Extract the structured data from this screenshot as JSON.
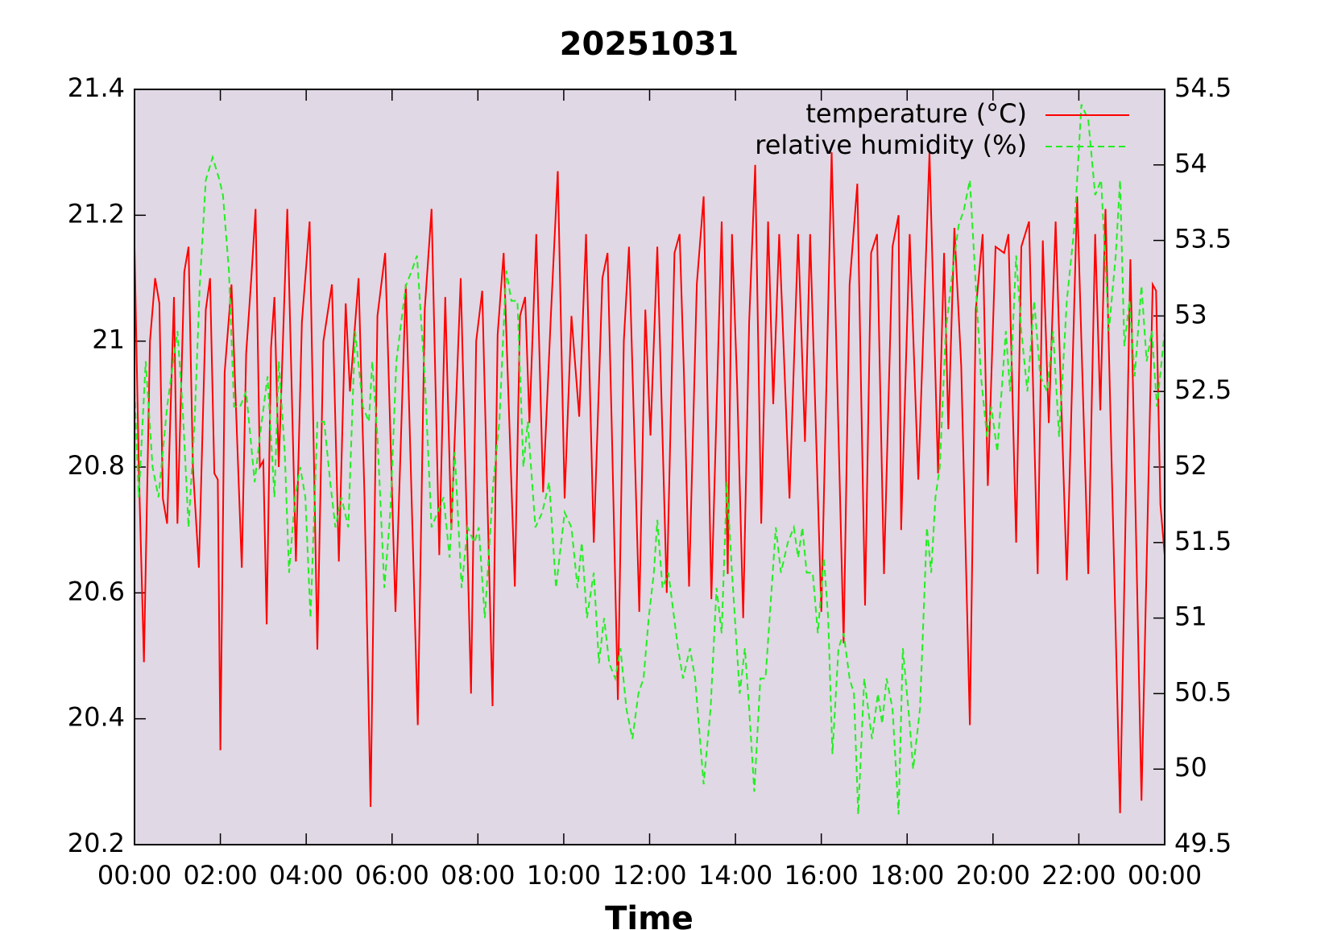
{
  "chart_data": {
    "type": "line",
    "title": "20251031",
    "x_label": "Time",
    "xlim": [
      0,
      24
    ],
    "xticks": [
      {
        "value": 0,
        "label": "00:00"
      },
      {
        "value": 2,
        "label": "02:00"
      },
      {
        "value": 4,
        "label": "04:00"
      },
      {
        "value": 6,
        "label": "06:00"
      },
      {
        "value": 8,
        "label": "08:00"
      },
      {
        "value": 10,
        "label": "10:00"
      },
      {
        "value": 12,
        "label": "12:00"
      },
      {
        "value": 14,
        "label": "14:00"
      },
      {
        "value": 16,
        "label": "16:00"
      },
      {
        "value": 18,
        "label": "18:00"
      },
      {
        "value": 20,
        "label": "20:00"
      },
      {
        "value": 22,
        "label": "22:00"
      },
      {
        "value": 24,
        "label": "00:00"
      }
    ],
    "ylim": [
      20.2,
      21.4
    ],
    "yticks": [
      20.2,
      20.4,
      20.6,
      20.8,
      21,
      21.2,
      21.4
    ],
    "y2lim": [
      49.5,
      54.5
    ],
    "y2ticks": [
      49.5,
      50,
      50.5,
      51,
      51.5,
      52,
      52.5,
      53,
      53.5,
      54,
      54.5
    ],
    "background": "#e0d8e4",
    "legend": "top-right",
    "series": [
      {
        "name": "temperature (°C)",
        "color": "#ff0000",
        "dashed": false,
        "x": [
          0,
          0.1,
          0.22,
          0.36,
          0.48,
          0.58,
          0.66,
          0.76,
          0.92,
          1.0,
          1.16,
          1.26,
          1.36,
          1.5,
          1.66,
          1.76,
          1.86,
          1.94,
          2.0,
          2.1,
          2.26,
          2.36,
          2.5,
          2.6,
          2.72,
          2.82,
          2.92,
          3.0,
          3.08,
          3.18,
          3.26,
          3.36,
          3.56,
          3.76,
          3.9,
          4.08,
          4.26,
          4.4,
          4.6,
          4.76,
          4.92,
          5.02,
          5.22,
          5.36,
          5.5,
          5.66,
          5.84,
          6.08,
          6.32,
          6.6,
          6.76,
          6.92,
          7.1,
          7.24,
          7.38,
          7.6,
          7.84,
          7.96,
          8.1,
          8.34,
          8.46,
          8.6,
          8.86,
          8.98,
          9.1,
          9.2,
          9.36,
          9.52,
          9.7,
          9.86,
          10.02,
          10.18,
          10.36,
          10.52,
          10.7,
          10.9,
          11.02,
          11.12,
          11.26,
          11.4,
          11.52,
          11.76,
          11.9,
          12.02,
          12.18,
          12.4,
          12.58,
          12.7,
          12.8,
          12.92,
          13.1,
          13.26,
          13.44,
          13.68,
          13.82,
          13.92,
          14.04,
          14.18,
          14.32,
          14.46,
          14.6,
          14.76,
          14.88,
          15.02,
          15.26,
          15.46,
          15.62,
          15.74,
          16.0,
          16.24,
          16.52,
          16.66,
          16.84,
          17.02,
          17.16,
          17.3,
          17.46,
          17.66,
          17.8,
          17.86,
          18.06,
          18.26,
          18.52,
          18.72,
          18.86,
          18.96,
          19.1,
          19.26,
          19.46,
          19.6,
          19.76,
          19.88,
          20.06,
          20.26,
          20.36,
          20.54,
          20.66,
          20.84,
          21.04,
          21.16,
          21.3,
          21.46,
          21.72,
          21.96,
          22.22,
          22.38,
          22.5,
          22.62,
          22.96,
          23.2,
          23.46,
          23.72,
          23.8,
          23.9,
          24.0
        ],
        "values": [
          21.15,
          20.8,
          20.49,
          21.0,
          21.1,
          21.06,
          20.75,
          20.71,
          21.07,
          20.71,
          21.11,
          21.15,
          20.8,
          20.64,
          21.05,
          21.1,
          20.79,
          20.78,
          20.35,
          20.95,
          21.09,
          20.9,
          20.64,
          20.98,
          21.1,
          21.21,
          20.8,
          20.81,
          20.55,
          20.99,
          21.07,
          20.8,
          21.21,
          20.65,
          21.03,
          21.19,
          20.51,
          21.0,
          21.09,
          20.65,
          21.06,
          20.92,
          21.1,
          20.75,
          20.26,
          21.04,
          21.14,
          20.57,
          21.09,
          20.39,
          21.05,
          21.21,
          20.66,
          21.07,
          20.7,
          21.1,
          20.44,
          21.0,
          21.08,
          20.42,
          21.01,
          21.14,
          20.61,
          21.04,
          21.07,
          20.87,
          21.17,
          20.76,
          21.04,
          21.27,
          20.75,
          21.04,
          20.88,
          21.17,
          20.68,
          21.1,
          21.14,
          20.86,
          20.43,
          21.0,
          21.15,
          20.57,
          21.05,
          20.85,
          21.15,
          20.6,
          21.14,
          21.17,
          20.95,
          20.61,
          21.09,
          21.23,
          20.59,
          21.19,
          20.63,
          21.17,
          20.93,
          20.56,
          21.03,
          21.28,
          20.71,
          21.19,
          20.9,
          21.17,
          20.75,
          21.17,
          20.84,
          21.17,
          20.57,
          21.3,
          20.52,
          21.09,
          21.25,
          20.58,
          21.14,
          21.17,
          20.63,
          21.15,
          21.2,
          20.7,
          21.17,
          20.78,
          21.3,
          20.79,
          21.14,
          20.86,
          21.18,
          20.96,
          20.39,
          21.05,
          21.17,
          20.77,
          21.15,
          21.14,
          21.17,
          20.68,
          21.15,
          21.19,
          20.63,
          21.16,
          20.87,
          21.19,
          20.62,
          21.23,
          20.63,
          21.17,
          20.89,
          21.21,
          20.25,
          21.13,
          20.27,
          21.09,
          21.08,
          20.74,
          20.66
        ]
      },
      {
        "name": "relative humidity (%)",
        "color": "#22ee22",
        "dashed": true,
        "axis": "y2",
        "x": [
          0,
          0.1,
          0.26,
          0.42,
          0.56,
          0.76,
          1.0,
          1.12,
          1.26,
          1.4,
          1.52,
          1.66,
          1.82,
          1.98,
          2.06,
          2.2,
          2.32,
          2.46,
          2.6,
          2.8,
          2.92,
          3.1,
          3.26,
          3.36,
          3.5,
          3.6,
          3.74,
          3.86,
          3.98,
          4.1,
          4.26,
          4.42,
          4.56,
          4.68,
          4.82,
          4.98,
          5.14,
          5.32,
          5.46,
          5.54,
          5.66,
          5.82,
          5.96,
          6.1,
          6.32,
          6.46,
          6.58,
          6.76,
          6.92,
          7.06,
          7.2,
          7.34,
          7.46,
          7.62,
          7.76,
          7.92,
          8.02,
          8.16,
          8.36,
          8.5,
          8.66,
          8.78,
          8.92,
          9.06,
          9.16,
          9.34,
          9.5,
          9.66,
          9.82,
          10.02,
          10.18,
          10.32,
          10.42,
          10.54,
          10.7,
          10.82,
          10.94,
          11.06,
          11.2,
          11.32,
          11.46,
          11.6,
          11.74,
          11.86,
          11.98,
          12.1,
          12.18,
          12.3,
          12.44,
          12.66,
          12.78,
          12.94,
          13.06,
          13.26,
          13.42,
          13.56,
          13.68,
          13.8,
          13.92,
          14.1,
          14.22,
          14.32,
          14.44,
          14.58,
          14.7,
          14.82,
          14.94,
          15.06,
          15.22,
          15.36,
          15.46,
          15.56,
          15.66,
          15.8,
          15.92,
          16.06,
          16.16,
          16.26,
          16.4,
          16.52,
          16.66,
          16.76,
          16.86,
          17.0,
          17.18,
          17.32,
          17.42,
          17.52,
          17.66,
          17.8,
          17.9,
          18.06,
          18.14,
          18.3,
          18.46,
          18.56,
          18.66,
          18.76,
          18.9,
          19.06,
          19.2,
          19.32,
          19.46,
          19.6,
          19.72,
          19.86,
          19.96,
          20.1,
          20.3,
          20.4,
          20.54,
          20.66,
          20.8,
          20.96,
          21.1,
          21.26,
          21.4,
          21.54,
          21.72,
          21.9,
          22.06,
          22.22,
          22.38,
          22.52,
          22.7,
          22.86,
          22.96,
          23.06,
          23.18,
          23.3,
          23.46,
          23.58,
          23.7,
          23.82,
          24.0
        ],
        "values": [
          52.5,
          51.8,
          52.7,
          52.0,
          51.8,
          52.4,
          52.9,
          52.4,
          51.6,
          52.3,
          53.2,
          53.9,
          54.05,
          53.9,
          53.8,
          53.3,
          52.4,
          52.4,
          52.5,
          51.9,
          52.2,
          52.6,
          51.8,
          52.7,
          52.1,
          51.3,
          51.8,
          52.0,
          51.8,
          51.0,
          52.3,
          52.3,
          51.9,
          51.6,
          51.8,
          51.6,
          52.9,
          52.4,
          52.3,
          52.7,
          52.2,
          51.2,
          51.7,
          52.7,
          53.2,
          53.3,
          53.4,
          52.6,
          51.6,
          51.7,
          51.8,
          51.4,
          52.1,
          51.2,
          51.6,
          51.5,
          51.6,
          51.0,
          51.9,
          52.3,
          53.3,
          53.1,
          53.1,
          52.0,
          52.3,
          51.6,
          51.7,
          51.9,
          51.2,
          51.7,
          51.6,
          51.2,
          51.5,
          51.0,
          51.3,
          50.7,
          51.0,
          50.7,
          50.6,
          50.8,
          50.4,
          50.2,
          50.5,
          50.6,
          51.0,
          51.3,
          51.65,
          51.2,
          51.3,
          50.8,
          50.6,
          50.8,
          50.6,
          49.9,
          50.4,
          51.2,
          50.9,
          51.9,
          51.3,
          50.5,
          50.8,
          50.4,
          49.85,
          50.6,
          50.6,
          51.1,
          51.6,
          51.3,
          51.5,
          51.6,
          51.4,
          51.6,
          51.3,
          51.3,
          50.9,
          51.4,
          51.0,
          50.1,
          50.8,
          50.9,
          50.6,
          50.5,
          49.7,
          50.6,
          50.2,
          50.5,
          50.3,
          50.6,
          50.4,
          49.7,
          50.8,
          50.3,
          50.0,
          50.4,
          51.6,
          51.3,
          51.8,
          52.0,
          52.9,
          53.3,
          53.6,
          53.7,
          53.9,
          53.2,
          52.6,
          52.2,
          52.4,
          52.1,
          52.9,
          52.5,
          53.4,
          52.9,
          52.5,
          53.1,
          52.6,
          52.5,
          52.9,
          52.2,
          53.1,
          53.6,
          54.4,
          54.3,
          53.8,
          53.9,
          52.9,
          53.4,
          53.9,
          52.8,
          53.1,
          52.6,
          53.2,
          52.7,
          52.9,
          52.4,
          52.9
        ]
      }
    ]
  }
}
